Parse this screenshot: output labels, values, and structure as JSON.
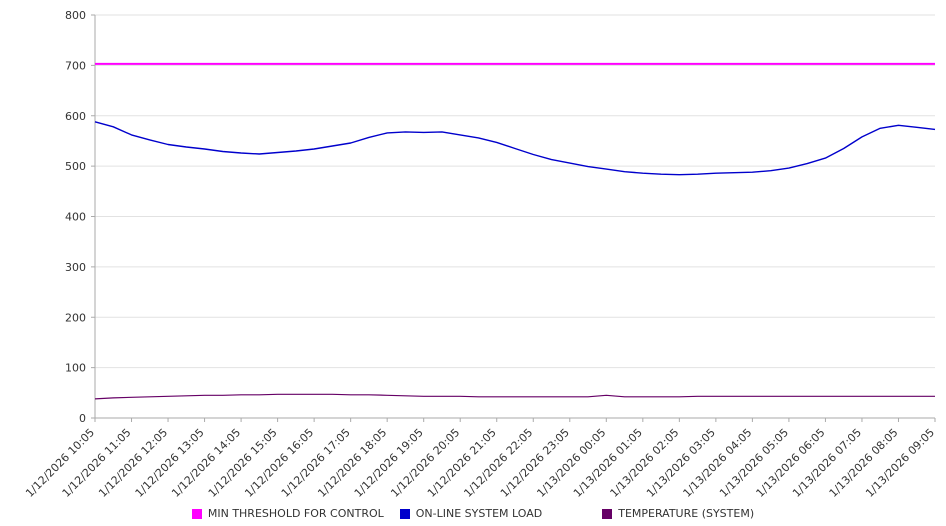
{
  "colors": {
    "background": "#ffffff",
    "grid": "#e2e2e2",
    "axis": "#aaaaaa",
    "text": "#333333"
  },
  "chart_data": {
    "type": "line",
    "ylim": [
      0,
      800
    ],
    "yticks": [
      0,
      100,
      200,
      300,
      400,
      500,
      600,
      700,
      800
    ],
    "grid": true,
    "legend_position": "bottom",
    "points_per_label": 2,
    "x": [
      "1/12/2026 10:05",
      "1/12/2026 11:05",
      "1/12/2026 12:05",
      "1/12/2026 13:05",
      "1/12/2026 14:05",
      "1/12/2026 15:05",
      "1/12/2026 16:05",
      "1/12/2026 17:05",
      "1/12/2026 18:05",
      "1/12/2026 19:05",
      "1/12/2026 20:05",
      "1/12/2026 21:05",
      "1/12/2026 22:05",
      "1/12/2026 23:05",
      "1/13/2026 00:05",
      "1/13/2026 01:05",
      "1/13/2026 02:05",
      "1/13/2026 03:05",
      "1/13/2026 04:05",
      "1/13/2026 05:05",
      "1/13/2026 06:05",
      "1/13/2026 07:05",
      "1/13/2026 08:05",
      "1/13/2026 09:05"
    ],
    "series": [
      {
        "name": "MIN THRESHOLD FOR CONTROL",
        "color": "#ff00ff",
        "stroke_width": 2,
        "constant_value": 703
      },
      {
        "name": "ON-LINE SYSTEM LOAD",
        "color": "#0000cc",
        "stroke_width": 1.4,
        "values": [
          588,
          578,
          562,
          552,
          543,
          538,
          534,
          529,
          526,
          524,
          527,
          530,
          534,
          540,
          546,
          557,
          566,
          568,
          567,
          568,
          562,
          556,
          547,
          535,
          523,
          513,
          506,
          499,
          494,
          489,
          486,
          484,
          483,
          484,
          486,
          487,
          488,
          491,
          496,
          505,
          516,
          535,
          558,
          575,
          581,
          577,
          573
        ]
      },
      {
        "name": "TEMPERATURE (SYSTEM)",
        "color": "#660066",
        "stroke_width": 1.2,
        "values": [
          38,
          40,
          41,
          42,
          43,
          44,
          45,
          45,
          46,
          46,
          47,
          47,
          47,
          47,
          46,
          46,
          45,
          44,
          43,
          43,
          43,
          42,
          42,
          42,
          42,
          42,
          42,
          42,
          45,
          42,
          42,
          42,
          42,
          43,
          43,
          43,
          43,
          43,
          43,
          43,
          43,
          43,
          43,
          43,
          43,
          43,
          43
        ]
      }
    ]
  }
}
